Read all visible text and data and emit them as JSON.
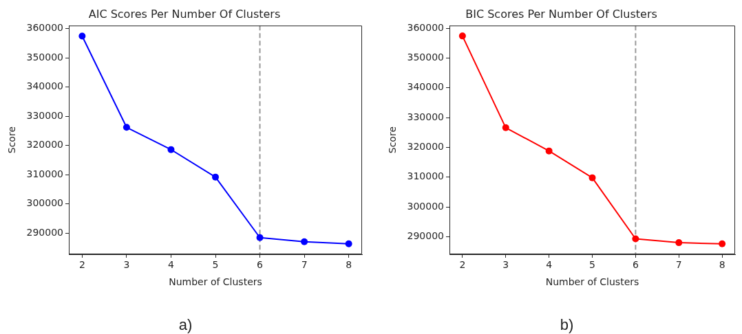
{
  "chart_data": [
    {
      "type": "line",
      "title": "AIC Scores Per Number Of Clusters",
      "xlabel": "Number of Clusters",
      "ylabel": "Score",
      "x": [
        2,
        3,
        4,
        5,
        6,
        7,
        8
      ],
      "series": [
        {
          "color": "#0000ff",
          "values": [
            357400,
            326200,
            318600,
            309200,
            288500,
            287100,
            286400
          ]
        }
      ],
      "xlim": [
        1.7,
        8.3
      ],
      "xticks": [
        2,
        3,
        4,
        5,
        6,
        7,
        8
      ],
      "ylim": [
        282800,
        361000
      ],
      "yticks": [
        290000,
        300000,
        310000,
        320000,
        330000,
        340000,
        350000,
        360000
      ],
      "ref_lines": [
        {
          "axis": "x",
          "value": 6,
          "color": "#999999",
          "line_style": "dashed"
        }
      ],
      "marker": "circle",
      "grid": false,
      "annotations": [
        "a)"
      ]
    },
    {
      "type": "line",
      "title": "BIC Scores Per Number Of Clusters",
      "xlabel": "Number of Clusters",
      "ylabel": "Score",
      "x": [
        2,
        3,
        4,
        5,
        6,
        7,
        8
      ],
      "series": [
        {
          "color": "#ff0000",
          "values": [
            357400,
            326600,
            318800,
            309800,
            289300,
            288000,
            287600
          ]
        }
      ],
      "xlim": [
        1.7,
        8.3
      ],
      "xticks": [
        2,
        3,
        4,
        5,
        6,
        7,
        8
      ],
      "ylim": [
        284100,
        360900
      ],
      "yticks": [
        290000,
        300000,
        310000,
        320000,
        330000,
        340000,
        350000,
        360000
      ],
      "ref_lines": [
        {
          "axis": "x",
          "value": 6,
          "color": "#999999",
          "line_style": "dashed"
        }
      ],
      "marker": "circle",
      "grid": false,
      "annotations": [
        "b)"
      ]
    }
  ]
}
